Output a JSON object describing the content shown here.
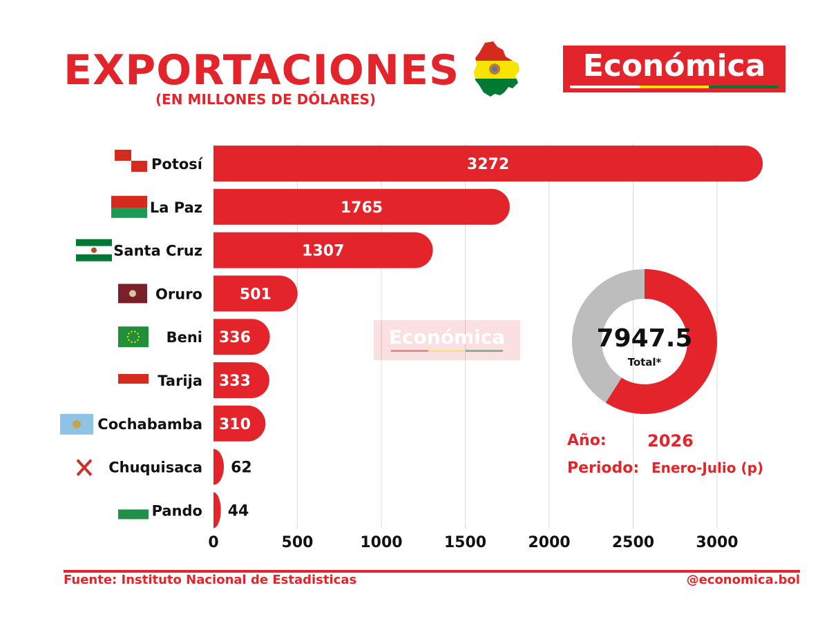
{
  "header": {
    "title": "EXPORTACIONES",
    "subtitle": "(EN MILLONES DE DÓLARES)",
    "logo_text": "Económica",
    "watermark_text": "Económica"
  },
  "colors": {
    "accent_red": "#e3242b",
    "donut_gray": "#bdbdbd",
    "grid": "#d9d9d9",
    "bolivia_red": "#d52b1e",
    "bolivia_yellow": "#f9e300",
    "bolivia_green": "#007934"
  },
  "icons": [
    "bolivia-map-icon",
    "flag-icon"
  ],
  "chart_data": [
    {
      "type": "bar",
      "orientation": "horizontal",
      "categories": [
        "Potosí",
        "La Paz",
        "Santa Cruz",
        "Oruro",
        "Beni",
        "Tarija",
        "Cochabamba",
        "Chuquisaca",
        "Pando"
      ],
      "values": [
        3272,
        1765,
        1307,
        501,
        336,
        333,
        310,
        62,
        44
      ],
      "value_labels": [
        "3272",
        "1765",
        "1307",
        "501",
        "336",
        "333",
        "310",
        "62",
        "44"
      ],
      "xticks": [
        "0",
        "500",
        "1000",
        "1500",
        "2000",
        "2500",
        "3000"
      ],
      "xlim": [
        0,
        3300
      ],
      "grid": true
    },
    {
      "type": "pie",
      "style": "donut",
      "center_value": "7947.5",
      "center_label": "Total*",
      "highlight_fraction": 0.59
    }
  ],
  "info": {
    "year_label": "Año:",
    "year_value": "2026",
    "period_label": "Periodo:",
    "period_value": "Enero-Julio (p)"
  },
  "footer": {
    "source": "Fuente: Instituto Nacional de Estadisticas",
    "handle": "@economica.bol"
  }
}
